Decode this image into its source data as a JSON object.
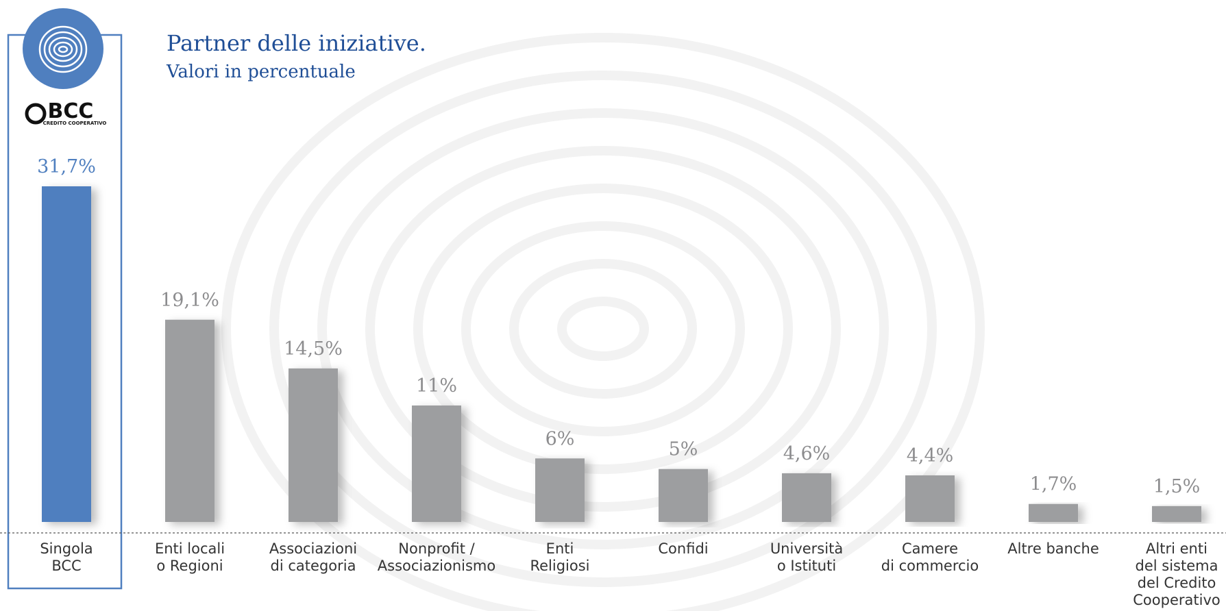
{
  "chart_data": {
    "type": "bar",
    "title": "Partner delle iniziative.",
    "subtitle": "Valori in percentuale",
    "logo": {
      "name": "BCC",
      "tagline": "CREDITO COOPERATIVO"
    },
    "categories": [
      [
        "Singola",
        "BCC"
      ],
      [
        "Enti locali",
        "o Regioni"
      ],
      [
        "Associazioni",
        "di categoria"
      ],
      [
        "Nonprofit /",
        "Associazionismo"
      ],
      [
        "Enti",
        "Religiosi"
      ],
      [
        "Confidi"
      ],
      [
        "Università",
        "o Istituti"
      ],
      [
        "Camere",
        "di commercio"
      ],
      [
        "Altre banche"
      ],
      [
        "Altri enti",
        "del sistema",
        "del Credito",
        "Cooperativo"
      ]
    ],
    "values": [
      31.7,
      19.1,
      14.5,
      11,
      6,
      5,
      4.6,
      4.4,
      1.7,
      1.5
    ],
    "value_labels": [
      "31,7%",
      "19,1%",
      "14,5%",
      "11%",
      "6%",
      "5%",
      "4,6%",
      "4,4%",
      "1,7%",
      "1,5%"
    ],
    "colors": [
      "#4f7fbf",
      "#9d9ea0",
      "#9d9ea0",
      "#9d9ea0",
      "#9d9ea0",
      "#9d9ea0",
      "#9d9ea0",
      "#9d9ea0",
      "#9d9ea0",
      "#9d9ea0"
    ],
    "label_colors": [
      "#4f7fbf",
      "#8c8c8e",
      "#8c8c8e",
      "#8c8c8e",
      "#8c8c8e",
      "#8c8c8e",
      "#8c8c8e",
      "#8c8c8e",
      "#8c8c8e",
      "#8c8c8e"
    ]
  }
}
